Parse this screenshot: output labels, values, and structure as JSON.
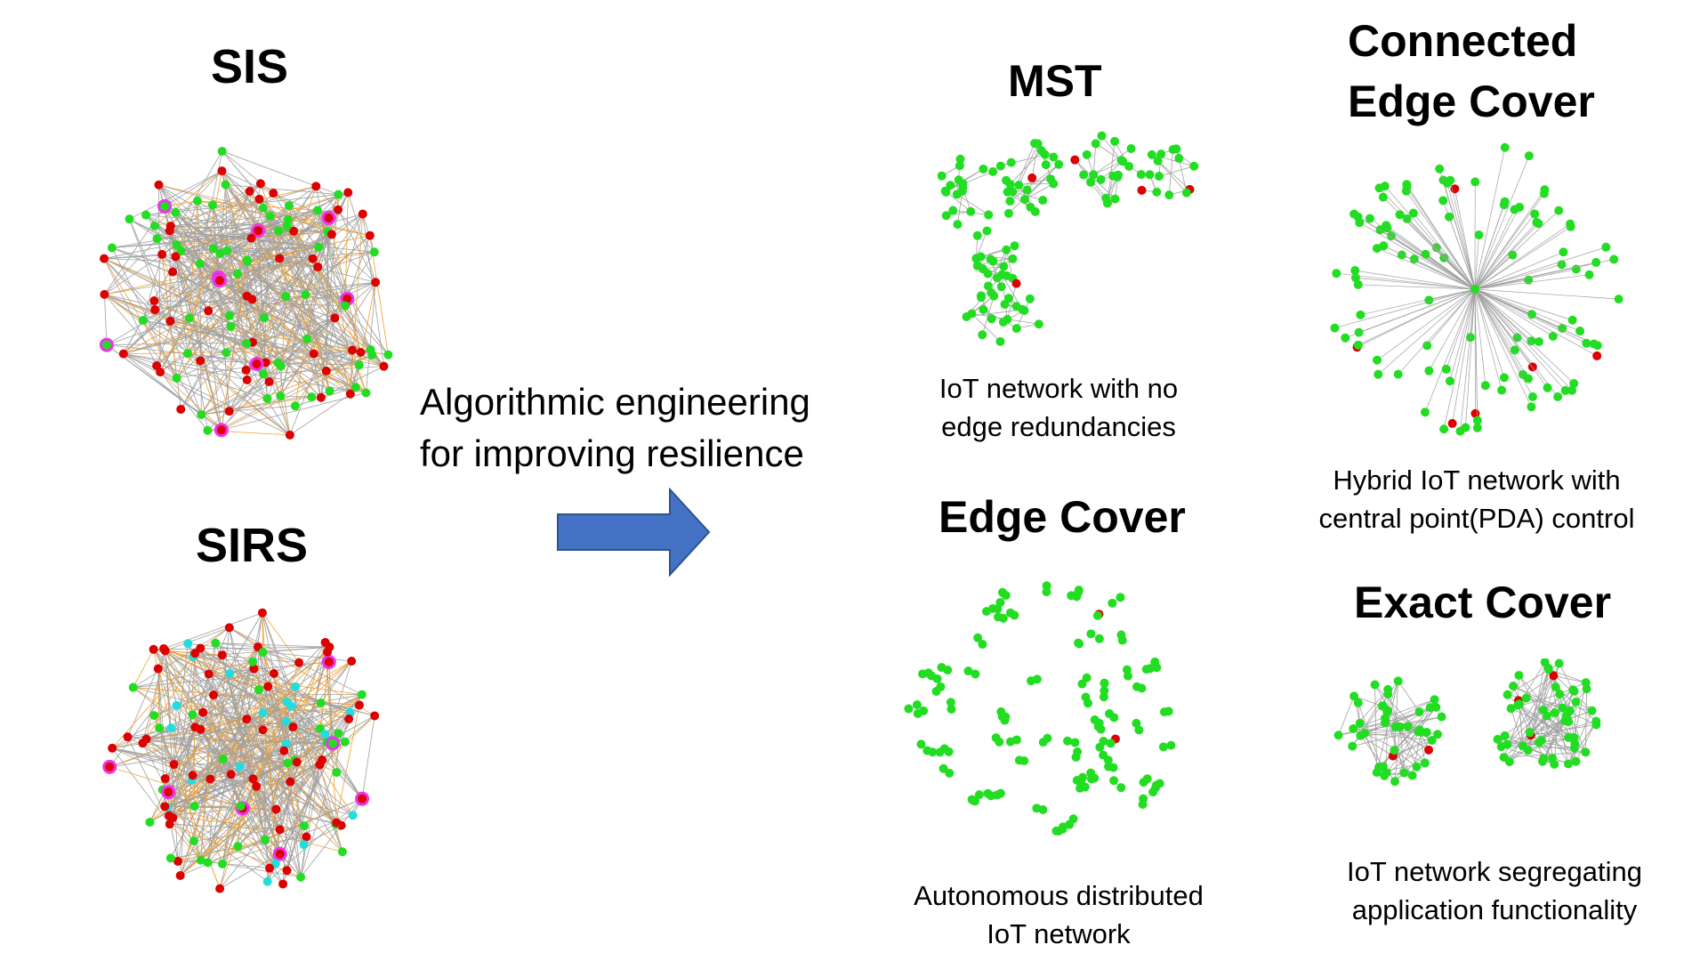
{
  "left": {
    "sis_title": "SIS",
    "sirs_title": "SIRS"
  },
  "middle": {
    "line1": "Algorithmic engineering",
    "line2": "for improving resilience"
  },
  "panels": {
    "mst": {
      "title": "MST",
      "caption1": "IoT network with no",
      "caption2": "edge redundancies"
    },
    "cec": {
      "title1": "Connected",
      "title2": "Edge Cover",
      "caption1": "Hybrid IoT network with",
      "caption2": "central point(PDA) control"
    },
    "ec": {
      "title": "Edge Cover",
      "caption1": "Autonomous distributed",
      "caption2": "IoT network"
    },
    "exact": {
      "title": "Exact Cover",
      "caption1": "IoT network segregating",
      "caption2": "application functionality"
    }
  },
  "colors": {
    "healthy": "#22dd22",
    "infected": "#dd0000",
    "recovered": "#22dddd",
    "highlight_ring": "#ee33ee",
    "edge": "#a0a0a0",
    "edge_highlight": "#f0a030",
    "arrow_fill": "#4472c4",
    "arrow_stroke": "#2f528f"
  },
  "icons": {
    "arrow": "right-arrow-icon"
  }
}
